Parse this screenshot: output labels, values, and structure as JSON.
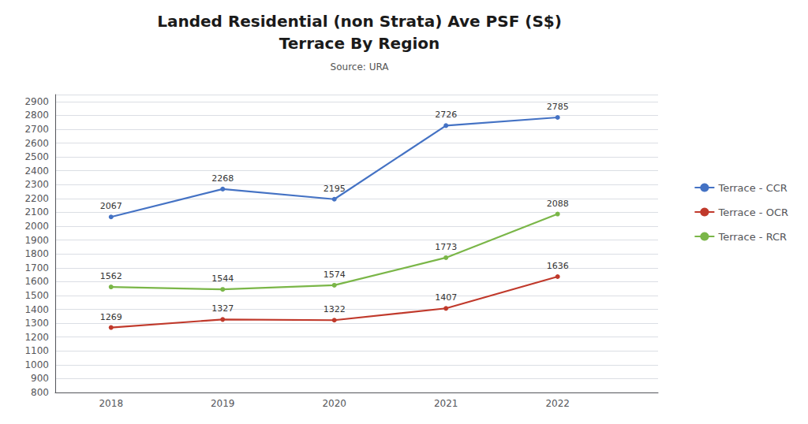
{
  "chart_data": {
    "type": "line",
    "title": "Landed Residential (non Strata) Ave PSF (S$)\nTerrace By Region",
    "subtitle": "Source: URA",
    "x": [
      2018,
      2019,
      2020,
      2021,
      2022
    ],
    "series": [
      {
        "name": "Terrace - CCR",
        "color": "#4472C4",
        "values": [
          2067,
          2268,
          2195,
          2726,
          2785
        ]
      },
      {
        "name": "Terrace - OCR",
        "color": "#C0392B",
        "values": [
          1269,
          1327,
          1322,
          1407,
          1636
        ]
      },
      {
        "name": "Terrace - RCR",
        "color": "#7AB648",
        "values": [
          1562,
          1544,
          1574,
          1773,
          2088
        ]
      }
    ],
    "xlim": [
      2017.5,
      2022.9
    ],
    "xticks": [
      2018,
      2019,
      2020,
      2021,
      2022
    ],
    "ylim": [
      800,
      2950
    ],
    "yticks": [
      800,
      900,
      1000,
      1100,
      1200,
      1300,
      1400,
      1500,
      1600,
      1700,
      1800,
      1900,
      2000,
      2100,
      2200,
      2300,
      2400,
      2500,
      2600,
      2700,
      2800,
      2900
    ],
    "grid": true,
    "legend": "right",
    "marker": "circle",
    "data_labels": true
  }
}
